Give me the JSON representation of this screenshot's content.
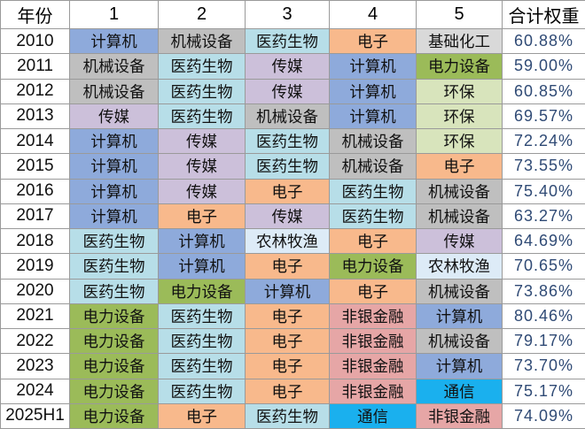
{
  "header": {
    "year": "年份",
    "ranks": [
      "1",
      "2",
      "3",
      "4",
      "5"
    ],
    "total": "合计权重"
  },
  "industry_colors": {
    "计算机": "#8eaadb",
    "机械设备": "#bfbfbf",
    "医药生物": "#b7dee8",
    "传媒": "#ccc0da",
    "电子": "#f8b98c",
    "基础化工": "#d9d9d9",
    "电力设备": "#9bbb59",
    "环保": "#d8e4bc",
    "农林牧渔": "#ddebf7",
    "非银金融": "#e6a6a6",
    "通信": "#1ab0ee"
  },
  "rows": [
    {
      "year": "2010",
      "industries": [
        "计算机",
        "机械设备",
        "医药生物",
        "电子",
        "基础化工"
      ],
      "total": "60.88%"
    },
    {
      "year": "2011",
      "industries": [
        "机械设备",
        "医药生物",
        "传媒",
        "计算机",
        "电力设备"
      ],
      "total": "59.00%"
    },
    {
      "year": "2012",
      "industries": [
        "机械设备",
        "医药生物",
        "传媒",
        "计算机",
        "环保"
      ],
      "total": "60.85%"
    },
    {
      "year": "2013",
      "industries": [
        "传媒",
        "医药生物",
        "机械设备",
        "计算机",
        "环保"
      ],
      "total": "69.57%"
    },
    {
      "year": "2014",
      "industries": [
        "计算机",
        "传媒",
        "医药生物",
        "机械设备",
        "环保"
      ],
      "total": "72.24%"
    },
    {
      "year": "2015",
      "industries": [
        "计算机",
        "传媒",
        "医药生物",
        "机械设备",
        "电子"
      ],
      "total": "73.55%"
    },
    {
      "year": "2016",
      "industries": [
        "计算机",
        "传媒",
        "电子",
        "医药生物",
        "机械设备"
      ],
      "total": "75.40%"
    },
    {
      "year": "2017",
      "industries": [
        "计算机",
        "电子",
        "传媒",
        "医药生物",
        "机械设备"
      ],
      "total": "63.27%"
    },
    {
      "year": "2018",
      "industries": [
        "医药生物",
        "计算机",
        "农林牧渔",
        "电子",
        "传媒"
      ],
      "total": "64.69%"
    },
    {
      "year": "2019",
      "industries": [
        "医药生物",
        "计算机",
        "电子",
        "电力设备",
        "农林牧渔"
      ],
      "total": "70.65%"
    },
    {
      "year": "2020",
      "industries": [
        "医药生物",
        "电力设备",
        "计算机",
        "电子",
        "机械设备"
      ],
      "total": "73.86%"
    },
    {
      "year": "2021",
      "industries": [
        "电力设备",
        "医药生物",
        "电子",
        "非银金融",
        "计算机"
      ],
      "total": "80.46%"
    },
    {
      "year": "2022",
      "industries": [
        "电力设备",
        "医药生物",
        "电子",
        "非银金融",
        "机械设备"
      ],
      "total": "79.17%"
    },
    {
      "year": "2023",
      "industries": [
        "电力设备",
        "医药生物",
        "电子",
        "非银金融",
        "计算机"
      ],
      "total": "73.70%"
    },
    {
      "year": "2024",
      "industries": [
        "电力设备",
        "医药生物",
        "电子",
        "非银金融",
        "通信"
      ],
      "total": "75.17%"
    },
    {
      "year": "2025H1",
      "industries": [
        "电力设备",
        "电子",
        "医药生物",
        "通信",
        "非银金融"
      ],
      "total": "74.09%"
    }
  ]
}
